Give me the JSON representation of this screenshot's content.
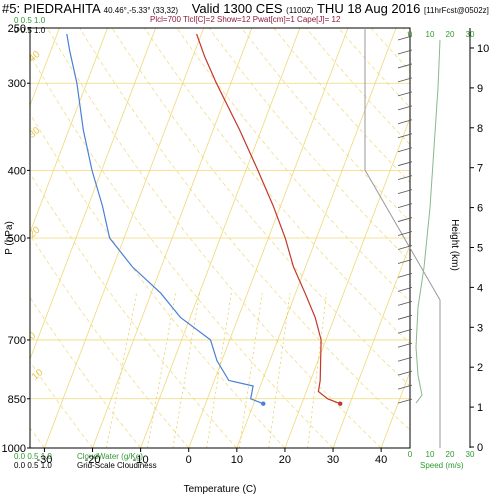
{
  "header": {
    "station": "#5: PIEDRAHITA",
    "coords": "40.46°,-5.33° (33,32)",
    "valid": "Valid 1300 CES",
    "utc": "(1100Z)",
    "date": "THU 18 Aug 2016",
    "forecast": "[11hrFcst@0502z]",
    "indices": "Plcl=700 Tlcl[C]=2 Show=12 Pwat[cm]=1 Cape[J]= 12"
  },
  "legend": {
    "top_scale_green": "0  0.5  1.0",
    "top_scale_black": "0  0.5  1.0",
    "cloudwater_scale": "0.0  0.5  1.0",
    "cloudwater_label": "CloudWater (g/Kg)",
    "cloudiness_scale": "0.0  0.5  1.0",
    "cloudiness_label": "Grid-Scale Cloudiness",
    "speed_ticks": [
      "0",
      "10",
      "20",
      "30"
    ],
    "speed_label": "Speed (m/s)"
  },
  "colors": {
    "temperature": "#c0392b",
    "dewpoint": "#4a7fd6",
    "isotherm": "#f0d878",
    "dry_adiabat": "#f0d878",
    "mixing_ratio": "#e8c84a",
    "speed_profile": "#8ab88a",
    "frame": "#000000"
  },
  "chart_data": {
    "type": "line",
    "title": "",
    "xlabel": "Temperature (C)",
    "ylabel": "P (hPa)",
    "y2label": "Height (km)",
    "xlim": [
      -33,
      46
    ],
    "ylim": [
      1000,
      250
    ],
    "yscale": "log",
    "skew_degrees_per_decade": 55,
    "x_ticks": [
      -30,
      -20,
      -10,
      0,
      10,
      20,
      30,
      40
    ],
    "x_tick_labels": [
      "-30",
      "-20",
      "-10",
      "0",
      "10",
      "20",
      "30",
      "40"
    ],
    "y_ticks": [
      250,
      300,
      400,
      500,
      700,
      850,
      1000
    ],
    "y_tick_labels": [
      "250",
      "300",
      "400",
      "500",
      "700",
      "850",
      "1000"
    ],
    "height_ticks": [
      0,
      1,
      2,
      3,
      4,
      5,
      6,
      7,
      8,
      9,
      10
    ],
    "series": [
      {
        "name": "Temperature",
        "points": [
          [
            864,
            28
          ],
          [
            850,
            25
          ],
          [
            830,
            22.5
          ],
          [
            800,
            22
          ],
          [
            700,
            19
          ],
          [
            650,
            16
          ],
          [
            600,
            12
          ],
          [
            550,
            7.5
          ],
          [
            500,
            3.5
          ],
          [
            450,
            -1.5
          ],
          [
            400,
            -7.5
          ],
          [
            350,
            -14.5
          ],
          [
            300,
            -23
          ],
          [
            275,
            -27.5
          ],
          [
            255,
            -31
          ]
        ]
      },
      {
        "name": "Dewpoint",
        "points": [
          [
            864,
            12
          ],
          [
            850,
            9
          ],
          [
            815,
            8.5
          ],
          [
            800,
            3
          ],
          [
            750,
            -1
          ],
          [
            700,
            -4
          ],
          [
            650,
            -12
          ],
          [
            600,
            -18
          ],
          [
            550,
            -26
          ],
          [
            500,
            -33
          ],
          [
            450,
            -37
          ],
          [
            400,
            -42
          ],
          [
            350,
            -47
          ],
          [
            300,
            -52
          ],
          [
            270,
            -56
          ],
          [
            255,
            -58
          ]
        ]
      }
    ],
    "speed_profile": [
      [
        1.1,
        3
      ],
      [
        1.3,
        6
      ],
      [
        1.8,
        4
      ],
      [
        2.5,
        3
      ],
      [
        3.5,
        4
      ],
      [
        4.5,
        7
      ],
      [
        6.0,
        10
      ],
      [
        7.5,
        12
      ],
      [
        9.0,
        14
      ],
      [
        10.2,
        15
      ]
    ],
    "speed_xlim": [
      0,
      30
    ],
    "mixing_ratio_labels": [
      "1",
      "2",
      "3",
      "5",
      "8",
      "12",
      "20"
    ],
    "dry_adiabat_labels": [
      "0",
      "10",
      "20",
      "30",
      "40",
      "50",
      "60",
      "70"
    ]
  }
}
